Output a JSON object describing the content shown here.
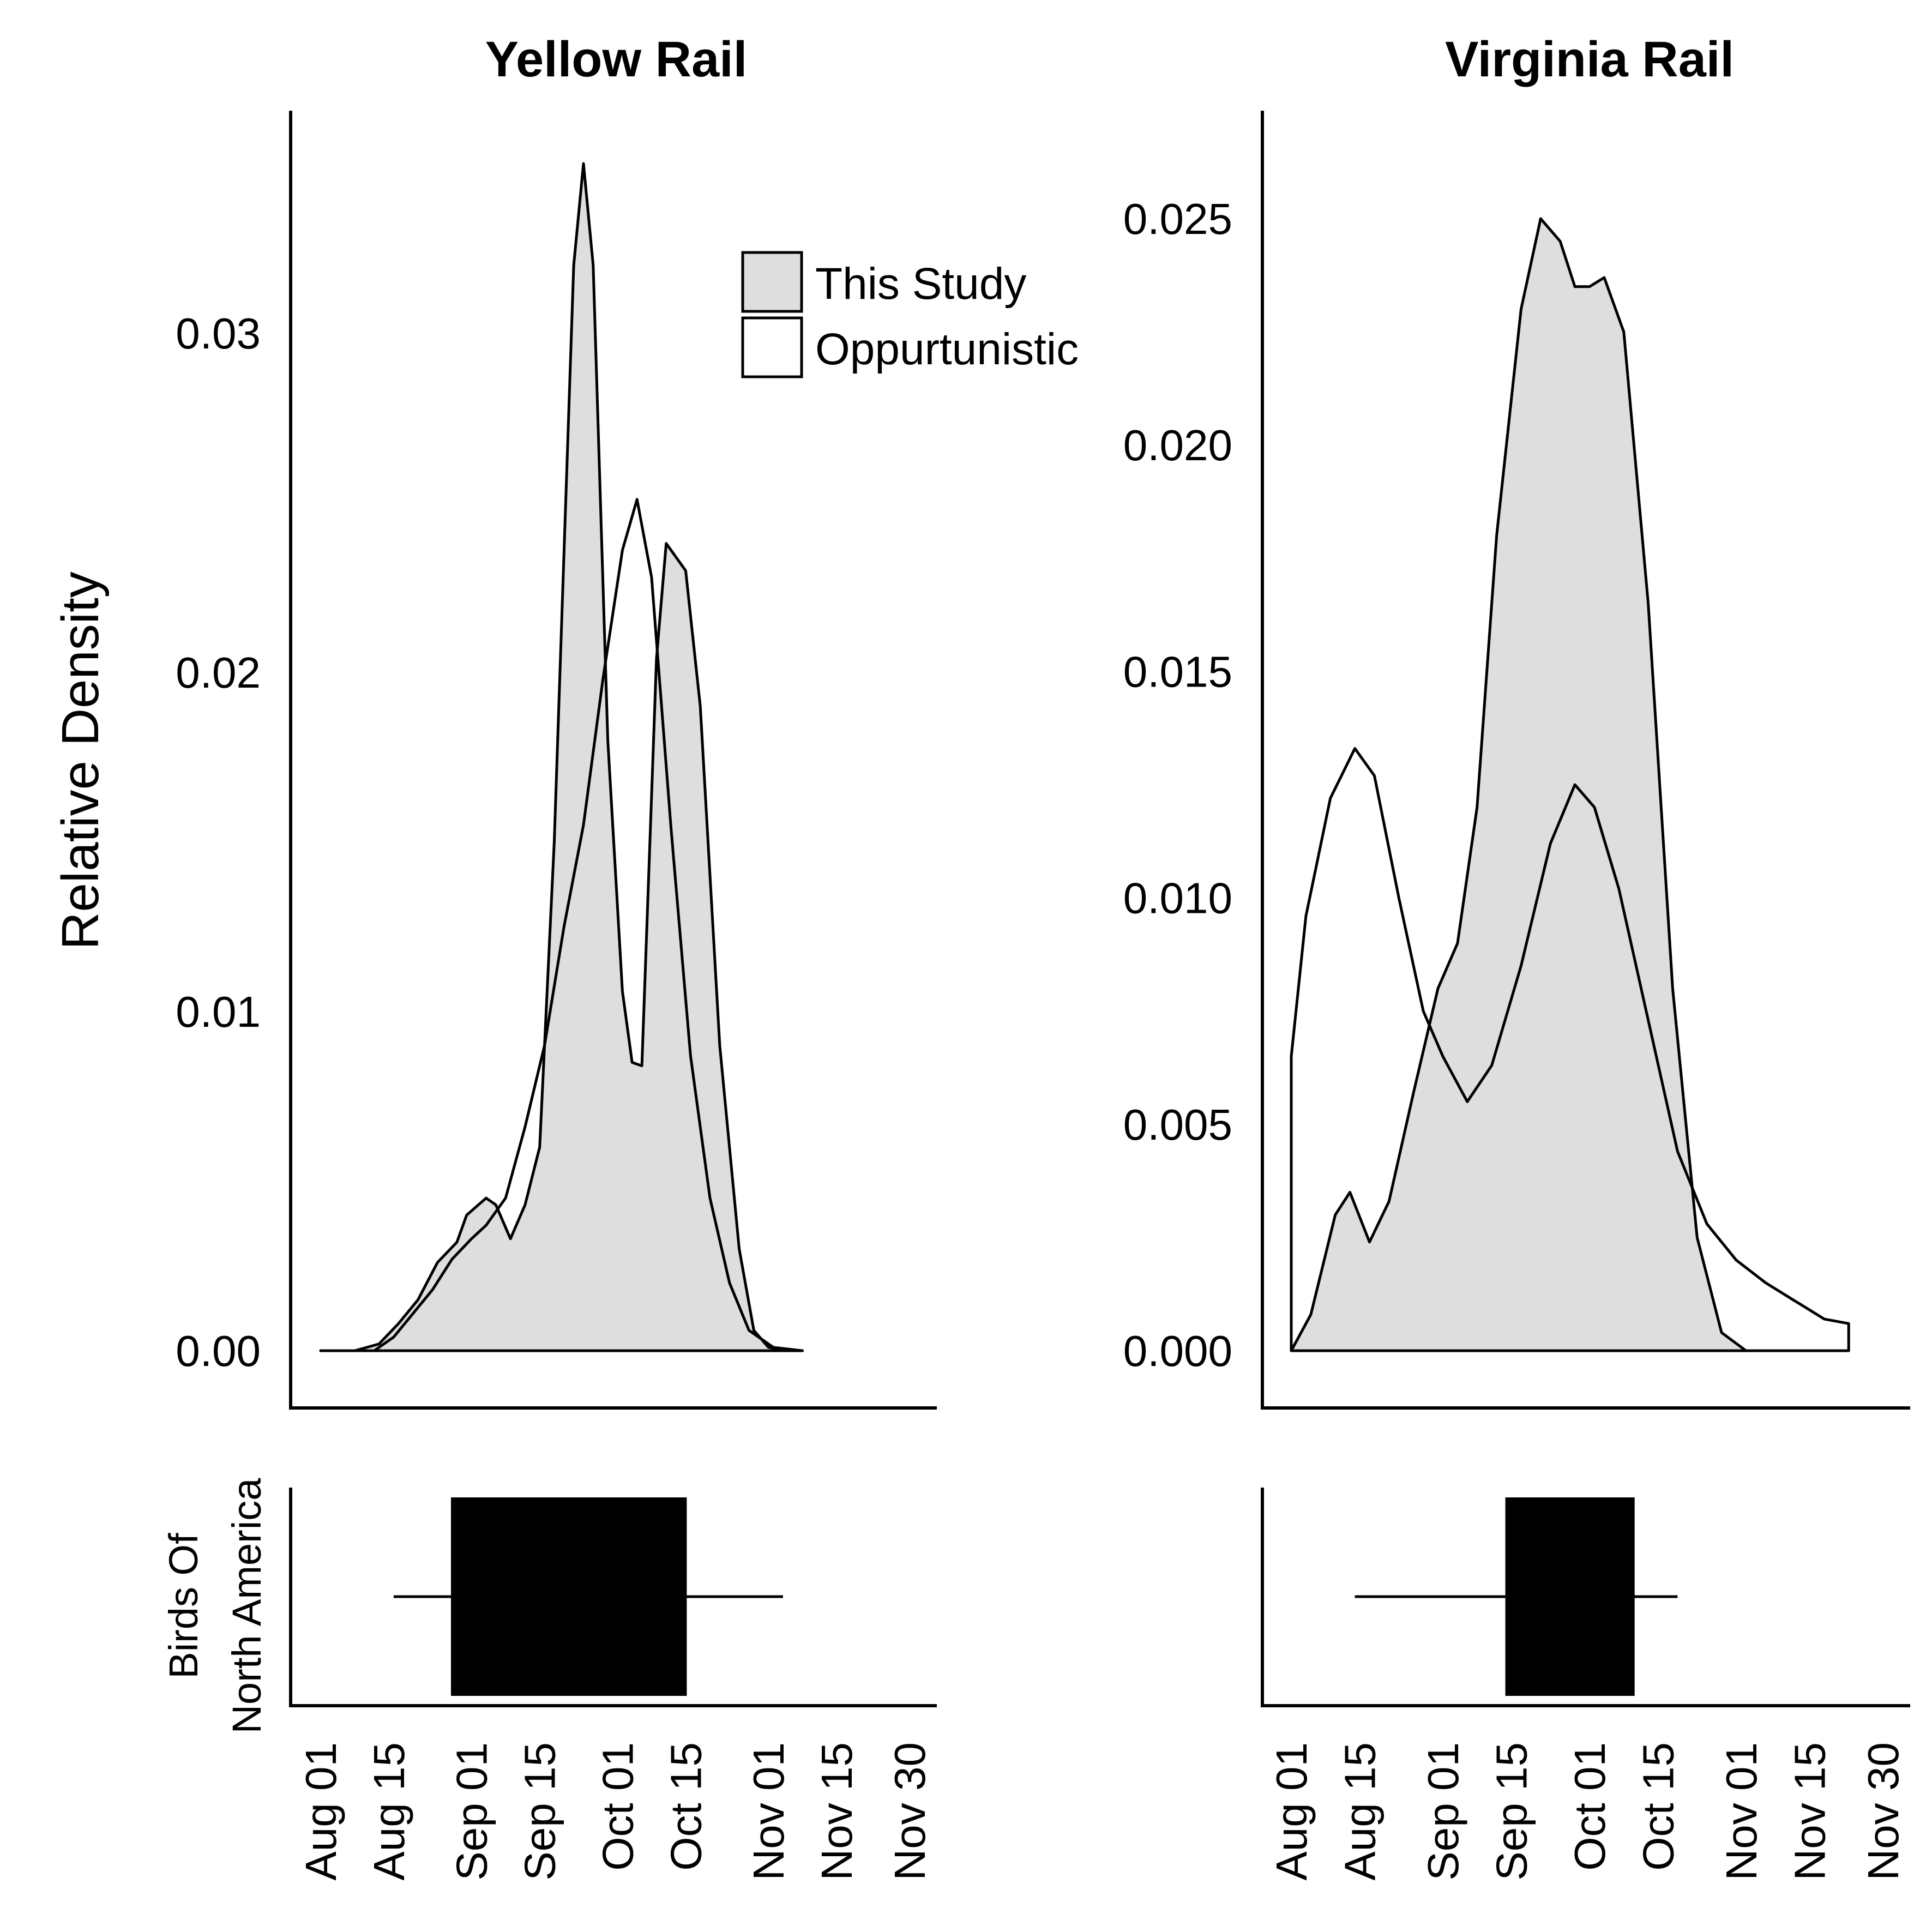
{
  "chart_data": [
    {
      "type": "area",
      "panel": "density",
      "title": "Yellow Rail",
      "ylabel": "Relative Density",
      "xlabel": "",
      "x_ticks": [
        "Aug 01",
        "Aug 15",
        "Sep 01",
        "Sep 15",
        "Oct 01",
        "Oct 15",
        "Nov 01",
        "Nov 15",
        "Nov 30"
      ],
      "y_ticks": [
        "0.00",
        "0.01",
        "0.02",
        "0.03"
      ],
      "ylim": [
        0,
        0.035
      ],
      "legend": {
        "position": "top-right",
        "entries": [
          {
            "label": "This Study",
            "fill": "#dedede"
          },
          {
            "label": "Oppurtunistic",
            "fill": "#ffffff"
          }
        ]
      },
      "series": [
        {
          "name": "This Study",
          "fill": "#dedede",
          "points": [
            [
              "2018-08-01",
              0
            ],
            [
              "2018-08-08",
              0
            ],
            [
              "2018-08-13",
              0.0002
            ],
            [
              "2018-08-17",
              0.0008
            ],
            [
              "2018-08-21",
              0.0015
            ],
            [
              "2018-08-25",
              0.0026
            ],
            [
              "2018-08-29",
              0.0032
            ],
            [
              "2018-08-31",
              0.004
            ],
            [
              "2018-09-04",
              0.0045
            ],
            [
              "2018-09-06",
              0.0043
            ],
            [
              "2018-09-09",
              0.0033
            ],
            [
              "2018-09-12",
              0.0043
            ],
            [
              "2018-09-15",
              0.006
            ],
            [
              "2018-09-18",
              0.015
            ],
            [
              "2018-09-22",
              0.032
            ],
            [
              "2018-09-24",
              0.035
            ],
            [
              "2018-09-26",
              0.032
            ],
            [
              "2018-09-29",
              0.018
            ],
            [
              "2018-10-02",
              0.0106
            ],
            [
              "2018-10-04",
              0.0085
            ],
            [
              "2018-10-06",
              0.0084
            ],
            [
              "2018-10-09",
              0.0204
            ],
            [
              "2018-10-11",
              0.0238
            ],
            [
              "2018-10-15",
              0.023
            ],
            [
              "2018-10-18",
              0.019
            ],
            [
              "2018-10-22",
              0.009
            ],
            [
              "2018-10-26",
              0.003
            ],
            [
              "2018-10-29",
              0.0006
            ],
            [
              "2018-11-01",
              0.0001
            ],
            [
              "2018-11-05",
              0
            ]
          ]
        },
        {
          "name": "Oppurtunistic",
          "fill": "#ffffff",
          "points": [
            [
              "2018-08-01",
              0
            ],
            [
              "2018-08-12",
              0
            ],
            [
              "2018-08-16",
              0.0004
            ],
            [
              "2018-08-20",
              0.0011
            ],
            [
              "2018-08-24",
              0.0018
            ],
            [
              "2018-08-28",
              0.0027
            ],
            [
              "2018-09-01",
              0.0033
            ],
            [
              "2018-09-04",
              0.0037
            ],
            [
              "2018-09-08",
              0.0045
            ],
            [
              "2018-09-12",
              0.0066
            ],
            [
              "2018-09-16",
              0.009
            ],
            [
              "2018-09-20",
              0.0125
            ],
            [
              "2018-09-24",
              0.0155
            ],
            [
              "2018-09-28",
              0.0198
            ],
            [
              "2018-10-02",
              0.0236
            ],
            [
              "2018-10-05",
              0.0251
            ],
            [
              "2018-10-08",
              0.0228
            ],
            [
              "2018-10-12",
              0.0154
            ],
            [
              "2018-10-16",
              0.0087
            ],
            [
              "2018-10-20",
              0.0045
            ],
            [
              "2018-10-24",
              0.002
            ],
            [
              "2018-10-28",
              0.0006
            ],
            [
              "2018-11-02",
              0.0001
            ],
            [
              "2018-11-08",
              0
            ]
          ]
        }
      ]
    },
    {
      "type": "area",
      "panel": "density",
      "title": "Virginia Rail",
      "ylabel": "",
      "xlabel": "",
      "x_ticks": [
        "Aug 01",
        "Aug 15",
        "Sep 01",
        "Sep 15",
        "Oct 01",
        "Oct 15",
        "Nov 01",
        "Nov 15",
        "Nov 30"
      ],
      "y_ticks": [
        "0.000",
        "0.005",
        "0.010",
        "0.015",
        "0.020",
        "0.025"
      ],
      "ylim": [
        0,
        0.026
      ],
      "series": [
        {
          "name": "This Study",
          "fill": "#dedede",
          "points": [
            [
              "2018-08-01",
              0
            ],
            [
              "2018-08-05",
              0.0008
            ],
            [
              "2018-08-10",
              0.003
            ],
            [
              "2018-08-13",
              0.0035
            ],
            [
              "2018-08-17",
              0.0024
            ],
            [
              "2018-08-21",
              0.0033
            ],
            [
              "2018-08-26",
              0.0057
            ],
            [
              "2018-08-31",
              0.008
            ],
            [
              "2018-09-04",
              0.009
            ],
            [
              "2018-09-08",
              0.012
            ],
            [
              "2018-09-12",
              0.018
            ],
            [
              "2018-09-17",
              0.023
            ],
            [
              "2018-09-21",
              0.025
            ],
            [
              "2018-09-25",
              0.0245
            ],
            [
              "2018-09-28",
              0.0235
            ],
            [
              "2018-10-01",
              0.0235
            ],
            [
              "2018-10-04",
              0.0237
            ],
            [
              "2018-10-08",
              0.0225
            ],
            [
              "2018-10-13",
              0.0165
            ],
            [
              "2018-10-18",
              0.008
            ],
            [
              "2018-10-23",
              0.0025
            ],
            [
              "2018-10-28",
              0.0004
            ],
            [
              "2018-11-02",
              0
            ]
          ]
        },
        {
          "name": "Oppurtunistic",
          "fill": "#ffffff",
          "points": [
            [
              "2018-08-01",
              0.0065
            ],
            [
              "2018-08-04",
              0.0096
            ],
            [
              "2018-08-09",
              0.0122
            ],
            [
              "2018-08-14",
              0.0133
            ],
            [
              "2018-08-18",
              0.0127
            ],
            [
              "2018-08-23",
              0.01
            ],
            [
              "2018-08-28",
              0.0075
            ],
            [
              "2018-09-01",
              0.0065
            ],
            [
              "2018-09-06",
              0.0055
            ],
            [
              "2018-09-11",
              0.0063
            ],
            [
              "2018-09-17",
              0.0085
            ],
            [
              "2018-09-23",
              0.0112
            ],
            [
              "2018-09-28",
              0.0125
            ],
            [
              "2018-10-02",
              0.012
            ],
            [
              "2018-10-07",
              0.0102
            ],
            [
              "2018-10-13",
              0.0073
            ],
            [
              "2018-10-19",
              0.0044
            ],
            [
              "2018-10-25",
              0.0028
            ],
            [
              "2018-10-31",
              0.002
            ],
            [
              "2018-11-06",
              0.0015
            ],
            [
              "2018-11-12",
              0.0011
            ],
            [
              "2018-11-18",
              0.0007
            ],
            [
              "2018-11-23",
              0.0006
            ]
          ]
        }
      ]
    },
    {
      "type": "box",
      "panel": "range",
      "species": "Yellow Rail",
      "ylabel": "Birds Of\nNorth America",
      "whisker_low": "2018-08-16",
      "box_low": "2018-08-28",
      "box_high": "2018-10-15",
      "whisker_high": "2018-11-04"
    },
    {
      "type": "box",
      "panel": "range",
      "species": "Virginia Rail",
      "ylabel": "",
      "whisker_low": "2018-08-14",
      "box_low": "2018-09-14",
      "box_high": "2018-10-10",
      "whisker_high": "2018-10-19"
    }
  ],
  "legend": {
    "this_study": "This Study",
    "opportunistic": "Oppurtunistic"
  },
  "labels": {
    "yellow_title": "Yellow Rail",
    "virginia_title": "Virginia Rail",
    "density_ylabel": "Relative Density",
    "bna_line1": "Birds Of",
    "bna_line2": "North America"
  },
  "colors": {
    "this_study_fill": "#dedede",
    "opportunistic_fill": "#ffffff",
    "box_fill": "#000000",
    "axis": "#000000"
  }
}
